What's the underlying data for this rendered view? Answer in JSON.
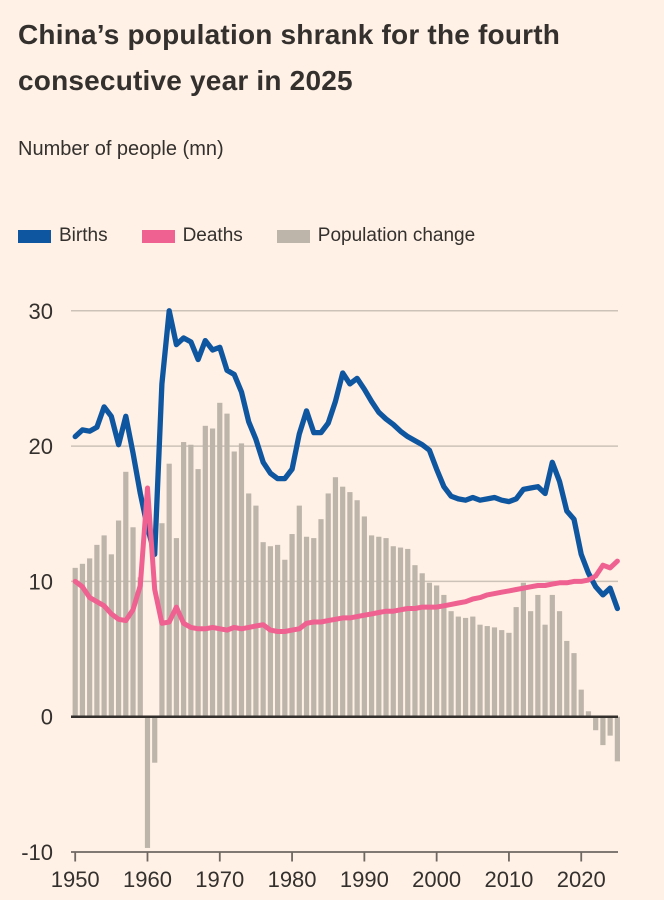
{
  "header": {
    "title": "China’s population shrank for the fourth consecutive year in 2025",
    "subtitle": "Number of people (mn)"
  },
  "legend": {
    "items": [
      {
        "label": "Births",
        "color": "#0F56A0"
      },
      {
        "label": "Deaths",
        "color": "#EE6190"
      },
      {
        "label": "Population change",
        "color": "#BDB4AA"
      }
    ]
  },
  "colors": {
    "background": "#FFF1E5",
    "text": "#33302E",
    "grid": "#CDC2B7",
    "zero_line": "#33302E",
    "axis": "#6E6762",
    "births": "#0F56A0",
    "deaths": "#EE6190",
    "change": "#BDB4AA"
  },
  "chart_data": {
    "type": "combo",
    "title": "China’s population shrank for the fourth consecutive year in 2025",
    "ylabel": "Number of people (mn)",
    "ylim": [
      -10,
      30
    ],
    "yticks": [
      30,
      20,
      10,
      0,
      -10
    ],
    "xticks": [
      1950,
      1960,
      1970,
      1980,
      1990,
      2000,
      2010,
      2020
    ],
    "grid": true,
    "legend_position": "top",
    "years": [
      1950,
      1951,
      1952,
      1953,
      1954,
      1955,
      1956,
      1957,
      1958,
      1959,
      1960,
      1961,
      1962,
      1963,
      1964,
      1965,
      1966,
      1967,
      1968,
      1969,
      1970,
      1971,
      1972,
      1973,
      1974,
      1975,
      1976,
      1977,
      1978,
      1979,
      1980,
      1981,
      1982,
      1983,
      1984,
      1985,
      1986,
      1987,
      1988,
      1989,
      1990,
      1991,
      1992,
      1993,
      1994,
      1995,
      1996,
      1997,
      1998,
      1999,
      2000,
      2001,
      2002,
      2003,
      2004,
      2005,
      2006,
      2007,
      2008,
      2009,
      2010,
      2011,
      2012,
      2013,
      2014,
      2015,
      2016,
      2017,
      2018,
      2019,
      2020,
      2021,
      2022,
      2023,
      2024,
      2025
    ],
    "series": [
      {
        "name": "Births",
        "type": "line",
        "color": "#0F56A0",
        "values": [
          20.7,
          21.2,
          21.1,
          21.4,
          22.9,
          22.2,
          20.1,
          22.2,
          19.5,
          16.5,
          14.0,
          12.0,
          24.6,
          30.0,
          27.5,
          28.0,
          27.7,
          26.4,
          27.8,
          27.1,
          27.3,
          25.6,
          25.3,
          24.0,
          21.8,
          20.5,
          18.8,
          18.0,
          17.6,
          17.6,
          18.3,
          20.9,
          22.6,
          21.0,
          21.0,
          21.7,
          23.3,
          25.4,
          24.6,
          25.0,
          24.2,
          23.3,
          22.5,
          22.0,
          21.6,
          21.1,
          20.7,
          20.4,
          20.1,
          19.7,
          18.3,
          17.0,
          16.3,
          16.1,
          16.0,
          16.2,
          16.0,
          16.1,
          16.2,
          16.0,
          15.9,
          16.1,
          16.8,
          16.9,
          17.0,
          16.5,
          18.8,
          17.4,
          15.2,
          14.6,
          12.0,
          10.6,
          9.6,
          9.0,
          9.5,
          8.0
        ]
      },
      {
        "name": "Deaths",
        "type": "line",
        "color": "#EE6190",
        "values": [
          10.0,
          9.6,
          8.8,
          8.5,
          8.2,
          7.6,
          7.2,
          7.1,
          7.9,
          9.7,
          16.9,
          9.4,
          6.9,
          7.0,
          8.1,
          6.9,
          6.6,
          6.5,
          6.5,
          6.6,
          6.5,
          6.4,
          6.6,
          6.5,
          6.6,
          6.7,
          6.8,
          6.4,
          6.3,
          6.3,
          6.4,
          6.5,
          6.9,
          7.0,
          7.0,
          7.1,
          7.2,
          7.3,
          7.3,
          7.4,
          7.5,
          7.6,
          7.7,
          7.8,
          7.8,
          7.9,
          8.0,
          8.0,
          8.1,
          8.1,
          8.1,
          8.2,
          8.3,
          8.4,
          8.5,
          8.7,
          8.8,
          9.0,
          9.1,
          9.2,
          9.3,
          9.4,
          9.5,
          9.6,
          9.7,
          9.7,
          9.8,
          9.9,
          9.9,
          10.0,
          10.0,
          10.1,
          10.4,
          11.2,
          11.0,
          11.5
        ]
      },
      {
        "name": "Population change",
        "type": "bar",
        "color": "#BDB4AA",
        "values": [
          11.0,
          11.3,
          11.7,
          12.7,
          13.4,
          12.0,
          14.5,
          18.1,
          14.0,
          10.3,
          -9.7,
          -3.4,
          14.3,
          18.7,
          13.2,
          20.3,
          20.1,
          18.3,
          21.5,
          21.3,
          23.2,
          22.4,
          19.6,
          20.2,
          16.5,
          15.6,
          12.9,
          12.6,
          12.7,
          11.6,
          13.5,
          15.6,
          13.3,
          13.2,
          14.6,
          16.5,
          17.7,
          17.0,
          16.6,
          16.0,
          14.8,
          13.4,
          13.3,
          13.2,
          12.6,
          12.5,
          12.4,
          11.2,
          10.6,
          9.9,
          9.7,
          9.0,
          7.8,
          7.4,
          7.3,
          7.4,
          6.8,
          6.7,
          6.6,
          6.4,
          6.2,
          8.1,
          9.9,
          7.8,
          9.0,
          6.8,
          9.0,
          7.8,
          5.6,
          4.7,
          2.0,
          0.4,
          -1.0,
          -2.1,
          -1.4,
          -3.3
        ]
      }
    ]
  }
}
